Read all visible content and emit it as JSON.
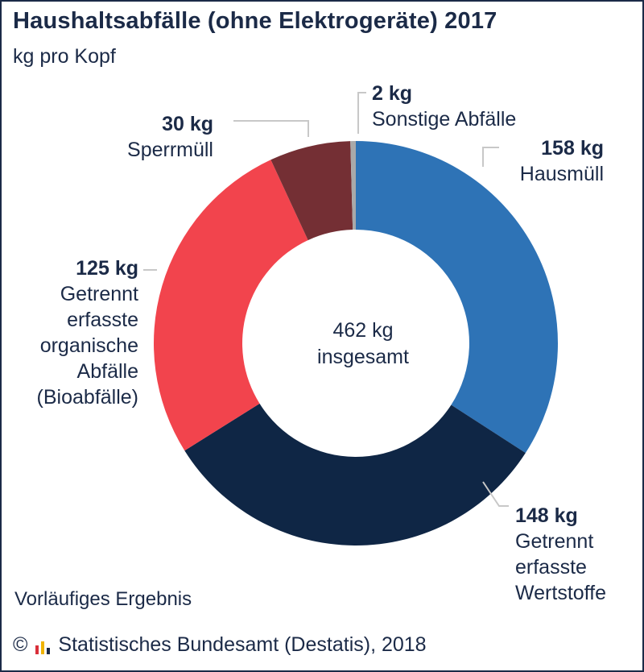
{
  "title": "Haushaltsabfälle (ohne Elektrogeräte) 2017",
  "subtitle": "kg pro Kopf",
  "note": "Vorläufiges Ergebnis",
  "source": {
    "copyright_symbol": "©",
    "text": "Statistisches Bundesamt (Destatis), 2018"
  },
  "chart_data": {
    "type": "pie",
    "donut": true,
    "unit": "kg",
    "center_label": [
      "462 kg",
      "insgesamt"
    ],
    "total": 462,
    "series": [
      {
        "name": "Hausmüll",
        "value": 158,
        "value_label": "158 kg",
        "label_lines": [
          "Hausmüll"
        ],
        "color": "#2e73b6"
      },
      {
        "name": "Getrennt erfasste Wertstoffe",
        "value": 148,
        "value_label": "148 kg",
        "label_lines": [
          "Getrennt",
          "erfasste",
          "Wertstoffe"
        ],
        "color": "#0f2645"
      },
      {
        "name": "Getrennt erfasste organische Abfälle (Bioabfälle)",
        "value": 125,
        "value_label": "125 kg",
        "label_lines": [
          "Getrennt",
          "erfasste",
          "organische",
          "Abfälle",
          "(Bioabfälle)"
        ],
        "color": "#f2444d"
      },
      {
        "name": "Sperrmüll",
        "value": 30,
        "value_label": "30 kg",
        "label_lines": [
          "Sperrmüll"
        ],
        "color": "#742f34"
      },
      {
        "name": "Sonstige Abfälle",
        "value": 2,
        "value_label": "2 kg",
        "label_lines": [
          "Sonstige Abfälle"
        ],
        "color": "#a9a9a9"
      }
    ],
    "legend": "none"
  },
  "colors": {
    "frame": "#1b2a47",
    "text": "#1b2a47",
    "leader_line": "#c8c8c8",
    "logo_red": "#d9303a",
    "logo_yellow": "#f0b400",
    "logo_dark": "#1b2a47"
  }
}
